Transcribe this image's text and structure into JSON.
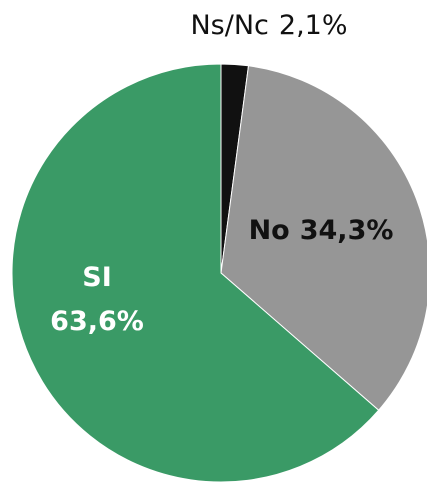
{
  "chart_data": {
    "type": "pie",
    "categories": [
      "Ns/Nc",
      "No",
      "SI"
    ],
    "values": [
      2.1,
      34.3,
      63.6
    ],
    "value_labels": [
      "2,1%",
      "34,3%",
      "63,6%"
    ],
    "colors": [
      "#111111",
      "#969696",
      "#3a9a66"
    ]
  }
}
